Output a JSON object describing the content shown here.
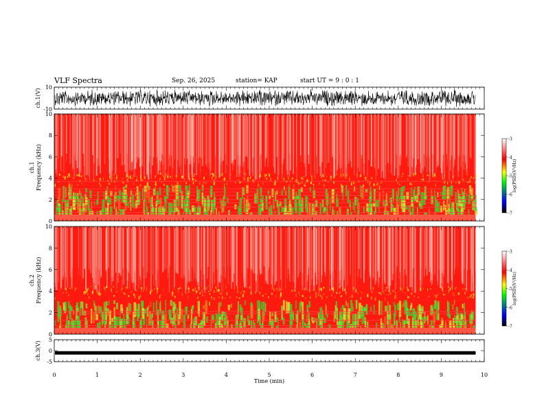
{
  "header": {
    "title": "VLF Spectra",
    "date": "Sep. 26, 2025",
    "station": "station= KAP",
    "start": "start  UT =   9 : 0  : 1"
  },
  "chart_data": [
    {
      "type": "line",
      "name": "ch1-waveform",
      "ylabel": "ch.1(V)",
      "ylim": [
        -10,
        10
      ],
      "yticks": [
        10,
        -10
      ],
      "xlim": [
        0,
        10
      ],
      "data_end_min": 9.8,
      "description_level": "noisy signal spanning roughly -8 to +8 V"
    },
    {
      "type": "heatmap",
      "name": "ch1-spectrogram",
      "ylabel": "ch.1\nFrequency (kHz)",
      "ylim": [
        0,
        10
      ],
      "yticks": [
        0,
        2,
        4,
        6,
        8,
        10
      ],
      "xlim": [
        0,
        10
      ],
      "data_end_min": 9.8,
      "colorbar": {
        "label": "log(PSD)(V²/Hz)",
        "range": [
          -7,
          -3
        ],
        "ticks": [
          "-3",
          "-4",
          "-5",
          "-6",
          "-7"
        ]
      }
    },
    {
      "type": "heatmap",
      "name": "ch2-spectrogram",
      "ylabel": "ch.2\nFrequency (kHz)",
      "ylim": [
        0,
        10
      ],
      "yticks": [
        0,
        2,
        4,
        6,
        8,
        10
      ],
      "xlim": [
        0,
        10
      ],
      "data_end_min": 9.8,
      "colorbar": {
        "label": "log(PSD)(V²/Hz)",
        "range": [
          -7,
          -3
        ],
        "ticks": [
          "-3",
          "-4",
          "-5",
          "-6",
          "-7"
        ]
      }
    },
    {
      "type": "line",
      "name": "ch3-waveform",
      "ylabel": "ch.3(V)",
      "ylim": [
        -5,
        5
      ],
      "yticks": [
        5,
        0,
        -5
      ],
      "xlim": [
        0,
        10
      ],
      "data_end_min": 9.8,
      "level": -1.0
    }
  ],
  "xaxis": {
    "label": "Time  (min)",
    "ticks": [
      "0",
      "1",
      "2",
      "3",
      "4",
      "5",
      "6",
      "7",
      "8",
      "9",
      "10"
    ]
  },
  "colors": {
    "background": "#ffffff",
    "axis": "#000000",
    "cmap": [
      "#000000",
      "#0000ff",
      "#00ff00",
      "#ffff00",
      "#ff0000",
      "#ffffff"
    ]
  }
}
